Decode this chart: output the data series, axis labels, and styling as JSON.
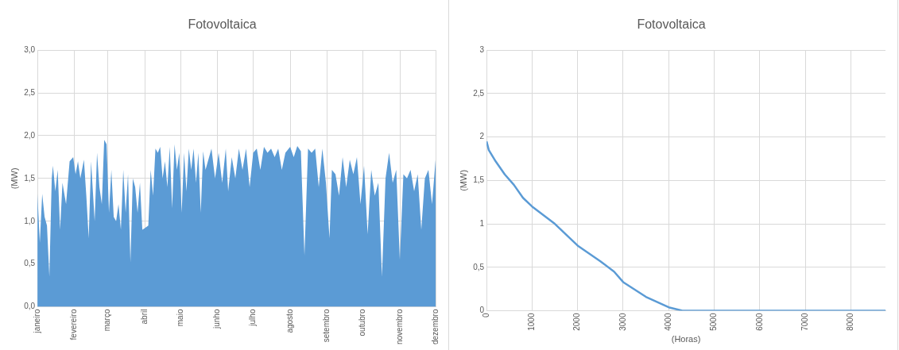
{
  "chart_data": [
    {
      "type": "area",
      "title": "Fotovoltaica",
      "ylabel": "(MW)",
      "x": [
        "--01-01",
        "--01-03",
        "--01-05",
        "--01-07",
        "--01-09",
        "--01-11",
        "--01-13",
        "--01-14",
        "--01-16",
        "--01-18",
        "--01-20",
        "--01-22",
        "--01-25",
        "--01-28",
        "--01-31",
        "--02-02",
        "--02-04",
        "--02-06",
        "--02-09",
        "--02-11",
        "--02-13",
        "--02-15",
        "--02-18",
        "--02-20",
        "--02-22",
        "--02-24",
        "--02-26",
        "--02-28",
        "--03-02",
        "--03-04",
        "--03-06",
        "--03-08",
        "--03-10",
        "--03-12",
        "--03-14",
        "--03-16",
        "--03-18",
        "--03-20",
        "--03-22",
        "--03-24",
        "--03-26",
        "--03-28",
        "--03-30",
        "--04-01",
        "--04-04",
        "--04-06",
        "--04-08",
        "--04-10",
        "--04-12",
        "--04-14",
        "--04-16",
        "--04-18",
        "--04-20",
        "--04-22",
        "--04-24",
        "--04-26",
        "--04-28",
        "--04-30",
        "--05-02",
        "--05-04",
        "--05-06",
        "--05-08",
        "--05-10",
        "--05-12",
        "--05-14",
        "--05-16",
        "--05-18",
        "--05-20",
        "--05-22",
        "--05-24",
        "--05-27",
        "--05-30",
        "--06-02",
        "--06-05",
        "--06-08",
        "--06-10",
        "--06-13",
        "--06-16",
        "--06-19",
        "--06-22",
        "--06-25",
        "--06-28",
        "--07-01",
        "--07-04",
        "--07-07",
        "--07-10",
        "--07-13",
        "--07-16",
        "--07-19",
        "--07-22",
        "--07-25",
        "--07-28",
        "--08-01",
        "--08-04",
        "--08-07",
        "--08-10",
        "--08-13",
        "--08-16",
        "--08-19",
        "--08-22",
        "--08-25",
        "--08-28",
        "--08-31",
        "--09-03",
        "--09-05",
        "--09-08",
        "--09-11",
        "--09-14",
        "--09-17",
        "--09-20",
        "--09-23",
        "--09-26",
        "--09-29",
        "--10-02",
        "--10-05",
        "--10-08",
        "--10-11",
        "--10-14",
        "--10-17",
        "--10-20",
        "--10-23",
        "--10-26",
        "--10-29",
        "--11-01",
        "--11-04",
        "--11-07",
        "--11-10",
        "--11-13",
        "--11-16",
        "--11-19",
        "--11-22",
        "--11-25",
        "--11-28",
        "--12-01"
      ],
      "series": [
        {
          "color": "#5b9bd5",
          "values": [
            1.32,
            0.75,
            1.32,
            1.05,
            0.95,
            0.35,
            1.5,
            1.65,
            1.35,
            1.6,
            0.9,
            1.45,
            1.2,
            1.7,
            1.75,
            1.55,
            1.7,
            1.5,
            1.72,
            1.3,
            0.8,
            1.7,
            1.0,
            1.8,
            1.4,
            1.2,
            1.95,
            1.9,
            1.1,
            1.6,
            1.05,
            1.0,
            1.2,
            0.9,
            1.6,
            1.1,
            1.55,
            0.52,
            1.5,
            1.4,
            1.1,
            1.45,
            0.9,
            0.92,
            0.95,
            1.6,
            1.3,
            1.85,
            1.8,
            1.87,
            1.5,
            1.7,
            1.4,
            1.87,
            1.15,
            1.9,
            1.6,
            1.8,
            1.1,
            1.8,
            1.35,
            1.85,
            1.6,
            1.85,
            1.45,
            1.8,
            1.1,
            1.82,
            1.6,
            1.7,
            1.85,
            1.5,
            1.8,
            1.45,
            1.85,
            1.35,
            1.75,
            1.5,
            1.85,
            1.6,
            1.85,
            1.4,
            1.8,
            1.85,
            1.6,
            1.87,
            1.8,
            1.85,
            1.75,
            1.85,
            1.6,
            1.8,
            1.87,
            1.75,
            1.88,
            1.82,
            0.6,
            1.85,
            1.8,
            1.85,
            1.4,
            1.85,
            1.45,
            0.8,
            1.6,
            1.55,
            1.3,
            1.75,
            1.4,
            1.72,
            1.55,
            1.75,
            1.2,
            1.65,
            0.85,
            1.6,
            1.3,
            1.45,
            0.35,
            1.5,
            1.8,
            1.45,
            1.6,
            0.55,
            1.55,
            1.5,
            1.6,
            1.35,
            1.55,
            0.9,
            1.5,
            1.6,
            1.2,
            1.72
          ]
        }
      ],
      "xlim": [
        "--01-01",
        "--12-01"
      ],
      "xticks": [
        {
          "value": "--01-01",
          "label": "janeiro"
        },
        {
          "value": "--02-01",
          "label": "fevereiro"
        },
        {
          "value": "--03-01",
          "label": "março"
        },
        {
          "value": "--04-01",
          "label": "abril"
        },
        {
          "value": "--05-01",
          "label": "maio"
        },
        {
          "value": "--06-01",
          "label": "junho"
        },
        {
          "value": "--07-01",
          "label": "julho"
        },
        {
          "value": "--08-01",
          "label": "agosto"
        },
        {
          "value": "--09-01",
          "label": "setembro"
        },
        {
          "value": "--10-01",
          "label": "outubro"
        },
        {
          "value": "--11-01",
          "label": "novembro"
        },
        {
          "value": "--12-01",
          "label": "dezembro"
        }
      ],
      "ylim": [
        0,
        3
      ],
      "yticks": [
        {
          "value": 0,
          "label": "0,0"
        },
        {
          "value": 0.5,
          "label": "0,5"
        },
        {
          "value": 1,
          "label": "1,0"
        },
        {
          "value": 1.5,
          "label": "1,5"
        },
        {
          "value": 2,
          "label": "2,0"
        },
        {
          "value": 2.5,
          "label": "2,5"
        },
        {
          "value": 3,
          "label": "3,0"
        }
      ],
      "grid": true
    },
    {
      "type": "line",
      "title": "Fotovoltaica",
      "xlabel": "(Horas)",
      "ylabel": "(MW)",
      "x": [
        0,
        50,
        200,
        400,
        600,
        800,
        1000,
        1500,
        2000,
        2500,
        2800,
        3000,
        3500,
        4000,
        4300,
        8760
      ],
      "series": [
        {
          "color": "#5b9bd5",
          "values": [
            1.95,
            1.85,
            1.72,
            1.57,
            1.45,
            1.3,
            1.2,
            1.0,
            0.75,
            0.57,
            0.45,
            0.33,
            0.16,
            0.04,
            0,
            0
          ]
        }
      ],
      "xlim": [
        0,
        8760
      ],
      "xticks": [
        0,
        1000,
        2000,
        3000,
        4000,
        5000,
        6000,
        7000,
        8000
      ],
      "ylim": [
        0,
        3
      ],
      "yticks": [
        0,
        {
          "value": 0.5,
          "label": "0,5"
        },
        1,
        {
          "value": 1.5,
          "label": "1,5"
        },
        2,
        {
          "value": 2.5,
          "label": "2,5"
        },
        3
      ],
      "grid": true,
      "marker": "none"
    }
  ]
}
